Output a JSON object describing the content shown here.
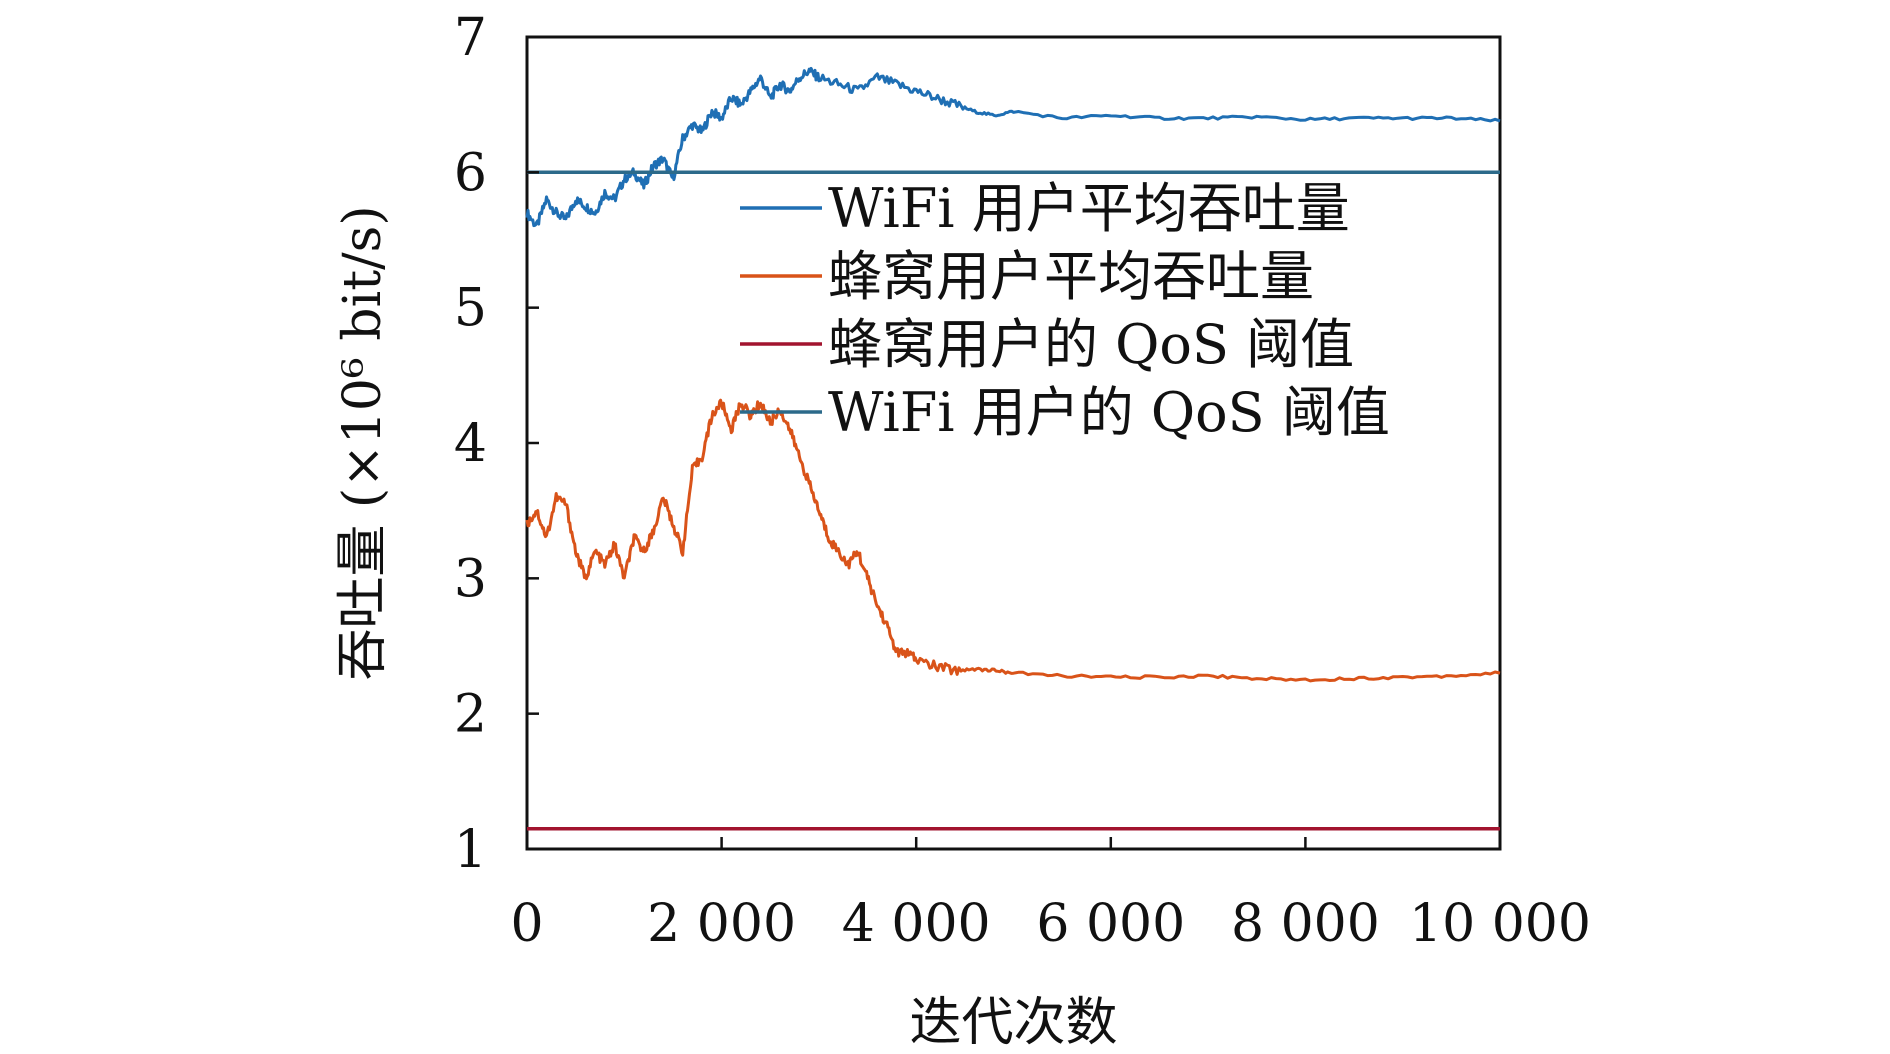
{
  "chart_data": {
    "type": "line",
    "title": "",
    "xlabel": "迭代次数",
    "ylabel": "吞吐量 (×10⁶ bit/s)",
    "xlim": [
      0,
      10000
    ],
    "ylim": [
      1,
      7
    ],
    "x_ticks": [
      0,
      2000,
      4000,
      6000,
      8000,
      10000
    ],
    "x_tick_labels": [
      "0",
      "2 000",
      "4 000",
      "6 000",
      "8 000",
      "10 000"
    ],
    "y_ticks": [
      1,
      2,
      3,
      4,
      5,
      6,
      7
    ],
    "y_tick_labels": [
      "1",
      "2",
      "3",
      "4",
      "5",
      "6",
      "7"
    ],
    "grid": false,
    "legend_position": "upper-right",
    "series": [
      {
        "name": "WiFi 用户平均吞吐量",
        "color": "#1f6fb4",
        "x": [
          0,
          100,
          200,
          300,
          400,
          500,
          600,
          700,
          800,
          900,
          1000,
          1100,
          1200,
          1300,
          1400,
          1500,
          1600,
          1700,
          1800,
          1900,
          2000,
          2100,
          2200,
          2300,
          2400,
          2500,
          2600,
          2700,
          2800,
          2900,
          3000,
          3200,
          3400,
          3600,
          3800,
          4000,
          4200,
          4400,
          4600,
          4800,
          5000,
          5500,
          6000,
          6500,
          7000,
          7500,
          8000,
          8500,
          9000,
          9500,
          10000
        ],
        "y": [
          5.7,
          5.6,
          5.8,
          5.7,
          5.65,
          5.8,
          5.75,
          5.7,
          5.85,
          5.8,
          5.95,
          6.0,
          5.9,
          6.05,
          6.1,
          5.95,
          6.25,
          6.35,
          6.3,
          6.45,
          6.4,
          6.55,
          6.5,
          6.6,
          6.7,
          6.55,
          6.65,
          6.6,
          6.7,
          6.75,
          6.7,
          6.65,
          6.6,
          6.7,
          6.65,
          6.6,
          6.55,
          6.5,
          6.45,
          6.42,
          6.45,
          6.4,
          6.42,
          6.4,
          6.4,
          6.41,
          6.39,
          6.4,
          6.4,
          6.4,
          6.38
        ]
      },
      {
        "name": "蜂窝用户平均吞吐量",
        "color": "#d95319",
        "x": [
          0,
          100,
          200,
          300,
          400,
          500,
          600,
          700,
          800,
          900,
          1000,
          1100,
          1200,
          1300,
          1400,
          1500,
          1600,
          1700,
          1800,
          1900,
          2000,
          2100,
          2200,
          2300,
          2400,
          2500,
          2600,
          2700,
          2800,
          2900,
          3000,
          3100,
          3200,
          3300,
          3400,
          3500,
          3600,
          3700,
          3800,
          3900,
          4000,
          4200,
          4400,
          4600,
          4800,
          5000,
          5500,
          6000,
          6500,
          7000,
          7500,
          8000,
          8500,
          9000,
          9500,
          10000
        ],
        "y": [
          3.4,
          3.5,
          3.3,
          3.6,
          3.55,
          3.2,
          3.0,
          3.2,
          3.1,
          3.25,
          3.0,
          3.3,
          3.2,
          3.35,
          3.6,
          3.4,
          3.2,
          3.8,
          3.9,
          4.2,
          4.3,
          4.1,
          4.3,
          4.2,
          4.3,
          4.15,
          4.25,
          4.1,
          3.9,
          3.7,
          3.5,
          3.3,
          3.2,
          3.1,
          3.2,
          3.0,
          2.8,
          2.65,
          2.45,
          2.45,
          2.4,
          2.35,
          2.32,
          2.33,
          2.32,
          2.3,
          2.28,
          2.27,
          2.27,
          2.28,
          2.26,
          2.25,
          2.26,
          2.27,
          2.28,
          2.3
        ]
      },
      {
        "name": "蜂窝用户的 QoS 阈值",
        "color": "#a2142f",
        "x": [
          0,
          10000
        ],
        "y": [
          1.15,
          1.15
        ]
      },
      {
        "name": "WiFi 用户的 QoS 阈值",
        "color": "#2c6a8a",
        "x": [
          0,
          10000
        ],
        "y": [
          6.0,
          6.0
        ]
      }
    ]
  }
}
